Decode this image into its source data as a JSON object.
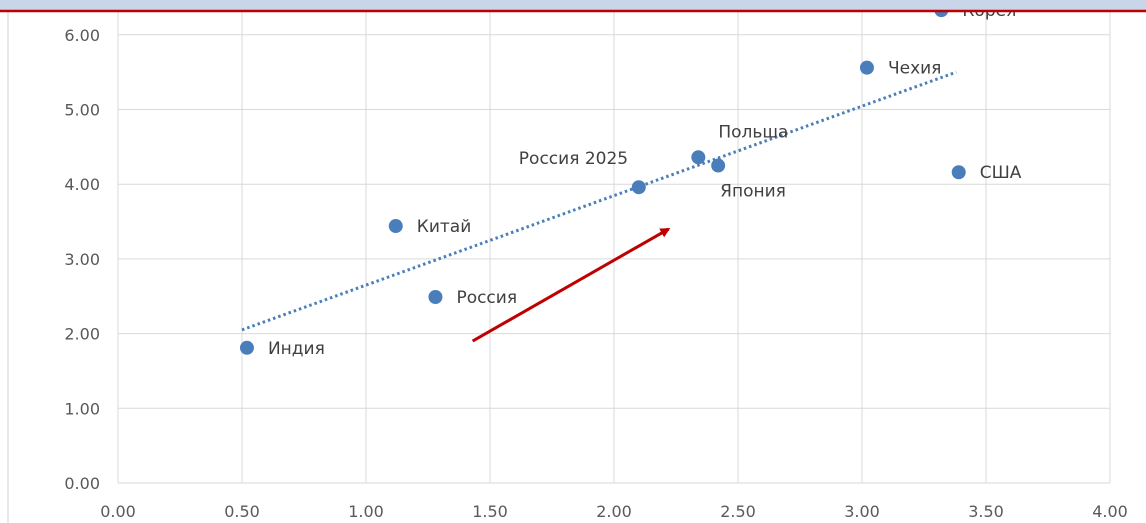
{
  "chart_data": {
    "type": "scatter",
    "title": "",
    "xlabel": "",
    "ylabel": "",
    "xlim": [
      0,
      4
    ],
    "ylim": [
      0,
      6.4
    ],
    "x_ticks": [
      0,
      0.5,
      1,
      1.5,
      2,
      2.5,
      3,
      3.5,
      4
    ],
    "y_ticks": [
      0,
      1,
      2,
      3,
      4,
      5,
      6
    ],
    "x_tick_labels": [
      "0.00",
      "0.50",
      "1.00",
      "1.50",
      "2.00",
      "2.50",
      "3.00",
      "3.50",
      "4.00"
    ],
    "y_tick_labels": [
      "0.00",
      "1.00",
      "2.00",
      "3.00",
      "4.00",
      "5.00",
      "6.00"
    ],
    "grid": true,
    "marker_color": "#4a7ebb",
    "highlight_color": "#e02020",
    "trendline": {
      "style": "dotted",
      "color": "#4a7ebb",
      "from": [
        0.5,
        2.05
      ],
      "to": [
        3.38,
        5.5
      ]
    },
    "arrow": {
      "color": "#c00000",
      "from": [
        1.43,
        1.9
      ],
      "to": [
        2.22,
        3.4
      ]
    },
    "points": [
      {
        "label": "Индия",
        "x": 0.52,
        "y": 1.81,
        "label_pos": "right"
      },
      {
        "label": "Китай",
        "x": 1.12,
        "y": 3.44,
        "label_pos": "right"
      },
      {
        "label": "Россия",
        "x": 1.28,
        "y": 2.49,
        "label_pos": "right"
      },
      {
        "label": "Россия 2025",
        "x": 2.1,
        "y": 3.96,
        "label_pos": "left-above",
        "highlight": true
      },
      {
        "label": "Польша",
        "x": 2.34,
        "y": 4.36,
        "label_pos": "right-above"
      },
      {
        "label": "Япония",
        "x": 2.42,
        "y": 4.25,
        "label_pos": "below"
      },
      {
        "label": "Чехия",
        "x": 3.02,
        "y": 5.56,
        "label_pos": "right"
      },
      {
        "label": "США",
        "x": 3.39,
        "y": 4.16,
        "label_pos": "right"
      },
      {
        "label": "Корея",
        "x": 3.32,
        "y": 6.33,
        "label_pos": "right"
      }
    ]
  },
  "header": {
    "bar_color": "#c9d6ea",
    "border_color": "#c00000"
  }
}
